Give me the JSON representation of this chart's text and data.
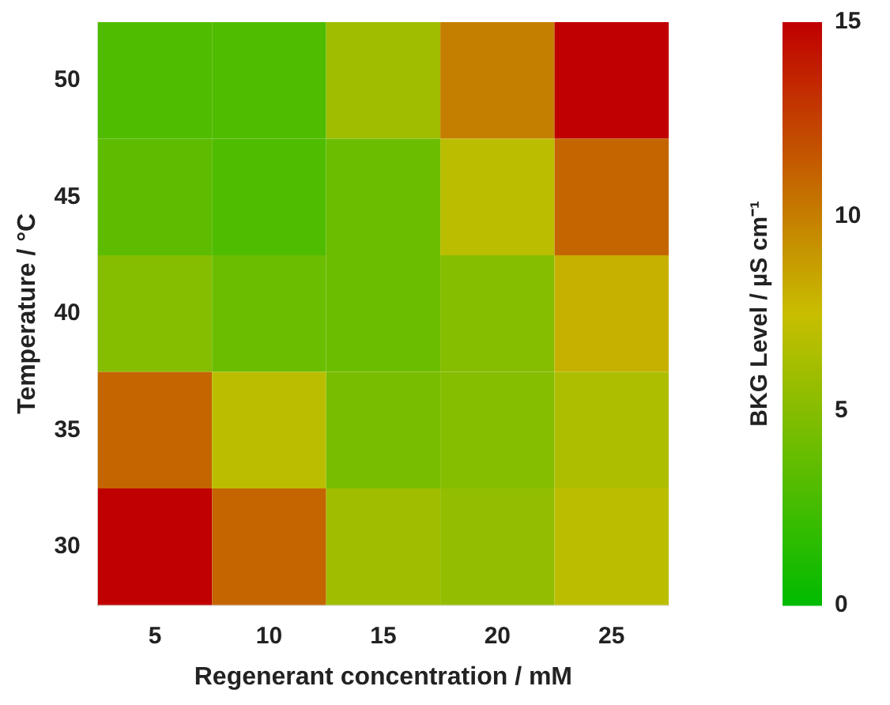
{
  "chart_data": {
    "type": "heatmap",
    "xlabel": "Regenerant concentration / mM",
    "ylabel": "Temperature / °C",
    "clabel": "BKG Level / µS cm⁻¹",
    "categories": [
      "5",
      "10",
      "15",
      "20",
      "25"
    ],
    "y_categories": [
      "50",
      "45",
      "40",
      "35",
      "30"
    ],
    "cells": [
      [
        3,
        3,
        6,
        10,
        15
      ],
      [
        3.5,
        3,
        4,
        7,
        11
      ],
      [
        5,
        4,
        4,
        5,
        8
      ],
      [
        11,
        7,
        4.5,
        5,
        6.5
      ],
      [
        15,
        11,
        6,
        5.5,
        7
      ]
    ],
    "clim": [
      0,
      15
    ],
    "cticks": [
      0,
      5,
      10,
      15
    ]
  }
}
